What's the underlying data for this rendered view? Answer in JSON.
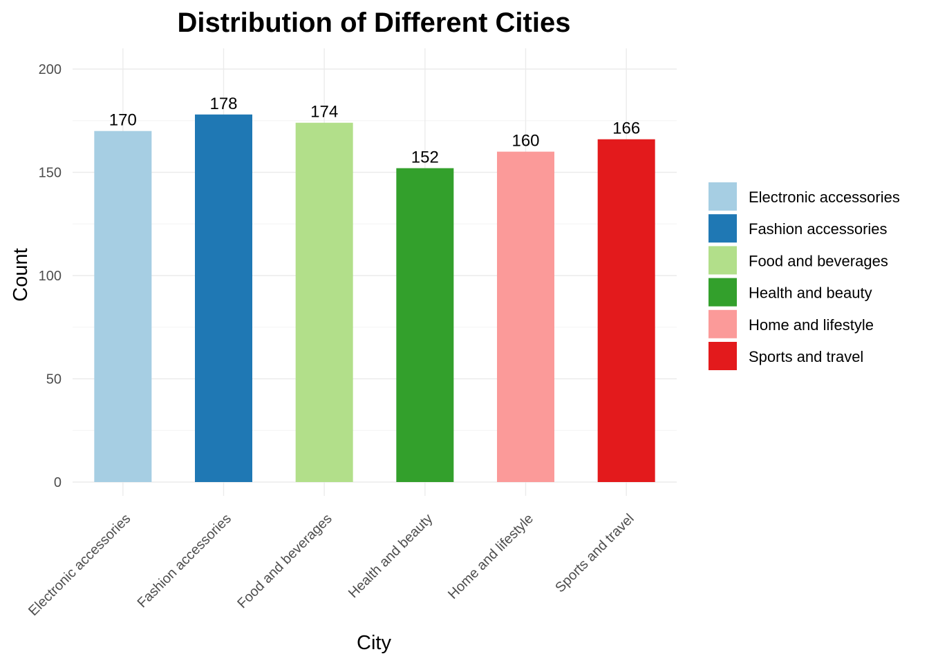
{
  "chart_data": {
    "type": "bar",
    "title": "Distribution of Different Cities",
    "xlabel": "City",
    "ylabel": "Count",
    "categories": [
      "Electronic accessories",
      "Fashion accessories",
      "Food and beverages",
      "Health and beauty",
      "Home and lifestyle",
      "Sports and travel"
    ],
    "values": [
      170,
      178,
      174,
      152,
      160,
      166
    ],
    "data_labels": [
      "170",
      "178",
      "174",
      "152",
      "160",
      "166"
    ],
    "colors": [
      "#a6cee3",
      "#1f78b4",
      "#b2df8a",
      "#33a02c",
      "#fb9a99",
      "#e31a1c"
    ],
    "ylim": [
      0,
      200
    ],
    "y_ticks": [
      0,
      50,
      100,
      150,
      200
    ],
    "y_tick_labels": [
      "0",
      "50",
      "100",
      "150",
      "200"
    ],
    "grid": true,
    "legend": {
      "position": "right",
      "entries": [
        "Electronic accessories",
        "Fashion accessories",
        "Food and beverages",
        "Health and beauty",
        "Home and lifestyle",
        "Sports and travel"
      ]
    }
  }
}
